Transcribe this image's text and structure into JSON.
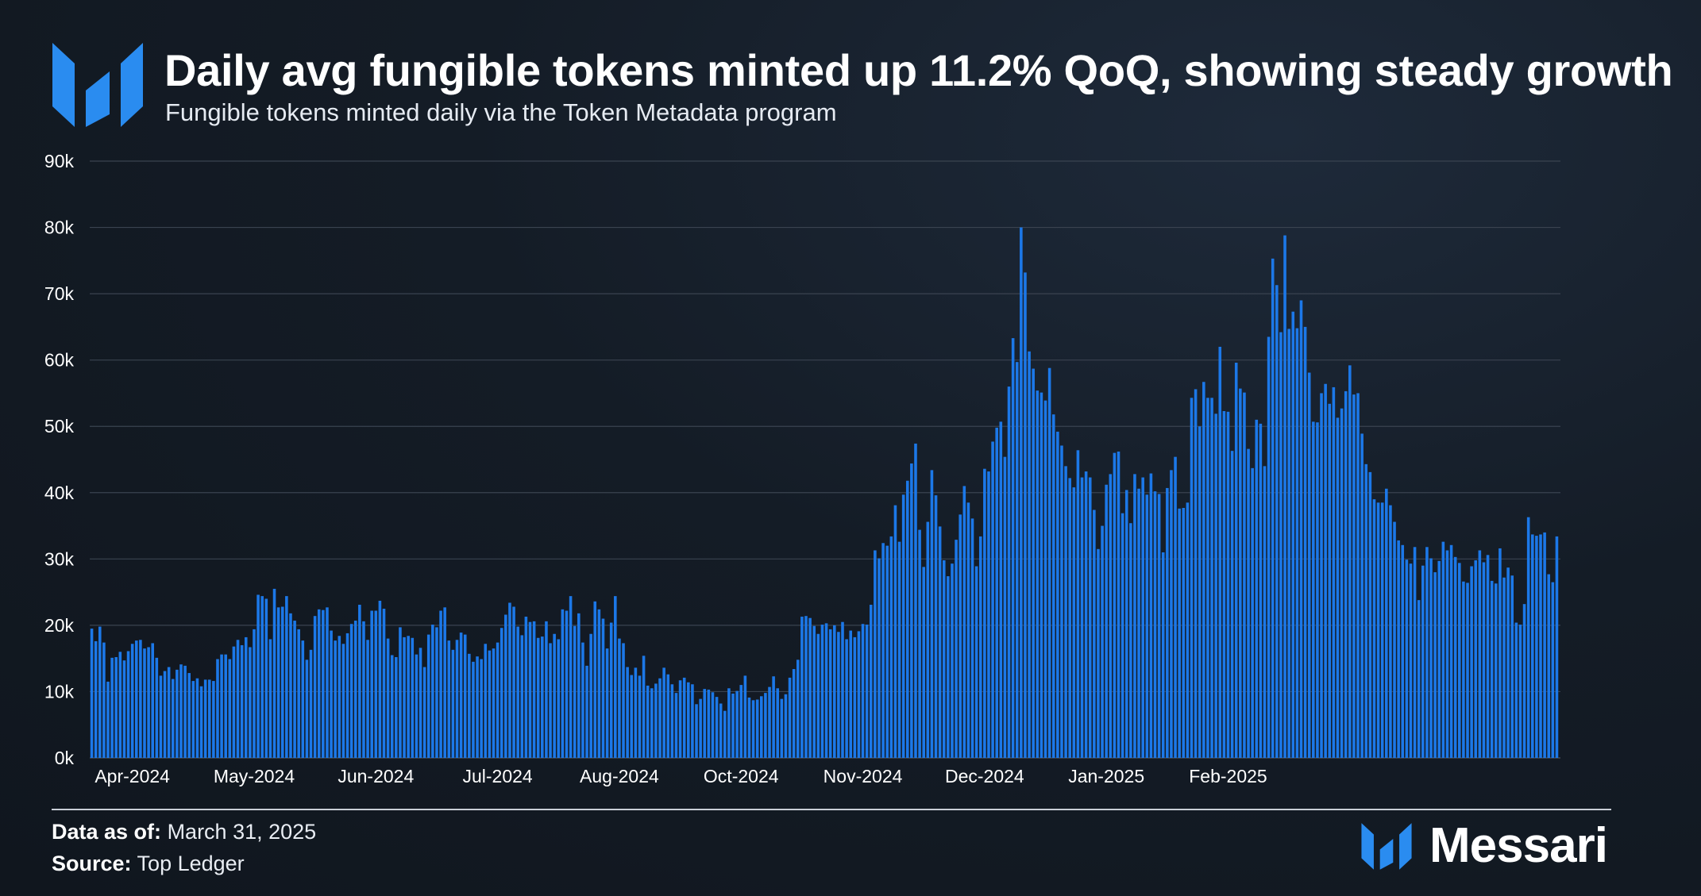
{
  "header": {
    "title": "Daily avg fungible tokens minted up 11.2% QoQ, showing steady growth",
    "subtitle": "Fungible tokens minted daily via the Token Metadata program",
    "logo_icon": "messari-logo-icon"
  },
  "footer": {
    "date_label": "Data as of:",
    "date_value": "March 31, 2025",
    "source_label": "Source:",
    "source_value": "Top Ledger",
    "brand_name": "Messari"
  },
  "colors": {
    "bar": "#1c78e8",
    "grid": "#3a4350",
    "axis_text": "#ffffff",
    "logo": "#2a8cf0"
  },
  "chart_data": {
    "type": "bar",
    "title": "Fungible tokens minted daily via the Token Metadata program",
    "xlabel": "",
    "ylabel": "",
    "ylim": [
      0,
      90000
    ],
    "yticks": [
      0,
      10000,
      20000,
      30000,
      40000,
      50000,
      60000,
      70000,
      80000,
      90000
    ],
    "ytick_labels": [
      "0k",
      "10k",
      "20k",
      "30k",
      "40k",
      "50k",
      "60k",
      "70k",
      "80k",
      "90k"
    ],
    "xtick_labels": [
      "Apr-2024",
      "May-2024",
      "Jun-2024",
      "Jul-2024",
      "Aug-2024",
      "Oct-2024",
      "Nov-2024",
      "Dec-2024",
      "Jan-2025",
      "Feb-2025"
    ],
    "xtick_bar_index": [
      10,
      40,
      70,
      100,
      130,
      160,
      190,
      220,
      250,
      280
    ],
    "grid": true,
    "legend": "none",
    "series": [
      {
        "name": "Fungible tokens minted",
        "values": [
          19500,
          17600,
          19800,
          17400,
          11500,
          15100,
          15200,
          16000,
          14700,
          16100,
          17200,
          17700,
          17800,
          16500,
          16700,
          17300,
          15100,
          12400,
          13100,
          13700,
          11900,
          13300,
          14100,
          13900,
          12800,
          11600,
          12000,
          10800,
          11800,
          11800,
          11600,
          14900,
          15600,
          15600,
          14900,
          16800,
          17800,
          17000,
          18200,
          16700,
          19400,
          24600,
          24400,
          24000,
          17900,
          25500,
          22700,
          22800,
          24400,
          21800,
          20700,
          19400,
          17700,
          14800,
          16300,
          21400,
          22400,
          22300,
          22700,
          19200,
          17700,
          18400,
          17200,
          18800,
          20200,
          20700,
          23100,
          20600,
          17800,
          22200,
          22200,
          23700,
          22500,
          18000,
          15500,
          15200,
          19700,
          18200,
          18400,
          18100,
          15600,
          16600,
          13700,
          18600,
          20100,
          19700,
          22200,
          22700,
          17700,
          16300,
          17800,
          18900,
          18600,
          15700,
          14500,
          15300,
          14900,
          17200,
          16200,
          16500,
          17400,
          19600,
          21600,
          23400,
          22800,
          19800,
          18500,
          21300,
          20500,
          20600,
          18100,
          18300,
          20600,
          17300,
          18700,
          17900,
          22400,
          22200,
          24400,
          19900,
          21800,
          17400,
          13900,
          18700,
          23600,
          22400,
          21000,
          16500,
          20400,
          24400,
          18000,
          17300,
          13700,
          12500,
          13600,
          12400,
          15400,
          10900,
          10500,
          11200,
          12000,
          13600,
          12600,
          11100,
          9800,
          11700,
          12100,
          11400,
          11100,
          8100,
          8900,
          10400,
          10300,
          9900,
          9200,
          8200,
          7100,
          10500,
          9700,
          10100,
          11000,
          12400,
          9100,
          8700,
          8800,
          9300,
          9800,
          10700,
          12300,
          10500,
          8900,
          9600,
          12100,
          13400,
          14800,
          21300,
          21400,
          21100,
          19900,
          18700,
          20100,
          20300,
          19400,
          20000,
          19000,
          20500,
          17900,
          19200,
          18200,
          19100,
          20200,
          20100,
          23100,
          31300,
          30100,
          32400,
          32000,
          33400,
          38100,
          32600,
          39700,
          41800,
          44400,
          47400,
          34400,
          28800,
          35600,
          43400,
          39600,
          34900,
          29800,
          27400,
          29300,
          32900,
          36700,
          41000,
          38500,
          36100,
          28900,
          33400,
          43600,
          43200,
          47700,
          49800,
          50700,
          45400,
          56000,
          63300,
          59700,
          80000,
          73200,
          61300,
          58700,
          55400,
          55100,
          53900,
          58800,
          51800,
          49200,
          47100,
          44000,
          42200,
          40800,
          46400,
          42300,
          43200,
          42300,
          37400,
          31500,
          35000,
          41200,
          42800,
          46000,
          46200,
          36900,
          40400,
          35400,
          42800,
          40600,
          42300,
          39700,
          42900,
          40200,
          39800,
          31000,
          40700,
          43400,
          45400,
          37600,
          37700,
          38500,
          54300,
          55600,
          50000,
          56700,
          54300,
          54300,
          51900,
          62000,
          52300,
          52200,
          46300,
          59600,
          55700,
          55100,
          46600,
          43700,
          51000,
          50400,
          44000,
          63500,
          75300,
          71300,
          64200,
          78800,
          64700,
          67300,
          64800,
          69000,
          65000,
          58100,
          50700,
          50600,
          55000,
          56400,
          53400,
          55900,
          51300,
          52700,
          55300,
          59200,
          54800,
          55000,
          48900,
          44300,
          43100,
          39000,
          38500,
          38500,
          40600,
          38100,
          35600,
          32800,
          32100,
          29900,
          29300,
          31800,
          23800,
          29000,
          31800,
          30100,
          28000,
          29700,
          32600,
          31300,
          32100,
          30300,
          29400,
          26600,
          26400,
          28900,
          29800,
          31300,
          29500,
          30600,
          26700,
          26300,
          31600,
          27200,
          28700,
          27500,
          20400,
          20100,
          23200,
          36300,
          33700,
          33500,
          33700,
          34000,
          27700,
          26500,
          33400
        ]
      }
    ]
  }
}
